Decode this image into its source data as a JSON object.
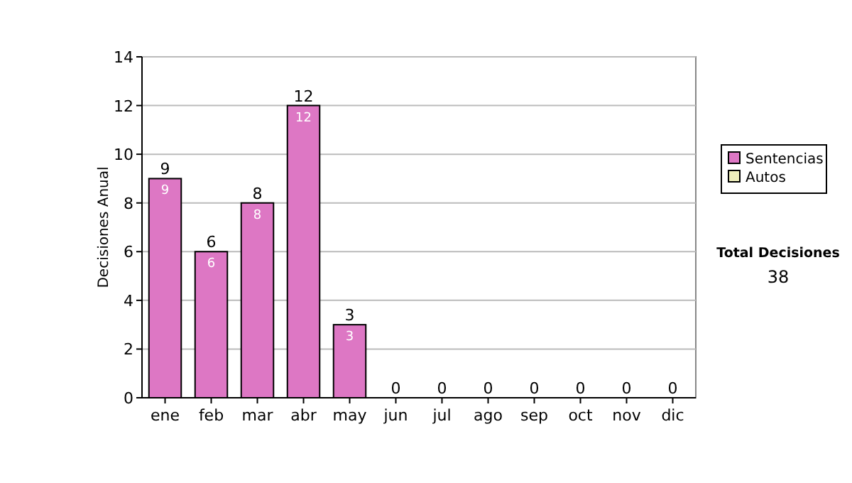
{
  "chart_data": {
    "type": "bar",
    "stacked": true,
    "ylabel": "Decisiones Anual",
    "categories": [
      "ene",
      "feb",
      "mar",
      "abr",
      "may",
      "jun",
      "jul",
      "ago",
      "sep",
      "oct",
      "nov",
      "dic"
    ],
    "series": [
      {
        "name": "Sentencias",
        "color": "#dd77c4",
        "values": [
          9,
          6,
          8,
          12,
          3,
          0,
          0,
          0,
          0,
          0,
          0,
          0
        ],
        "value_labels": [
          "9",
          "6",
          "8",
          "12",
          "3",
          null,
          null,
          null,
          null,
          null,
          null,
          null
        ]
      },
      {
        "name": "Autos",
        "color": "#eeeebb",
        "values": [
          0,
          0,
          0,
          0,
          0,
          0,
          0,
          0,
          0,
          0,
          0,
          0
        ]
      }
    ],
    "totals": [
      "9",
      "6",
      "8",
      "12",
      "3",
      "0",
      "0",
      "0",
      "0",
      "0",
      "0",
      "0"
    ],
    "ylim": [
      0,
      14
    ],
    "yticks": [
      0,
      2,
      4,
      6,
      8,
      10,
      12,
      14
    ],
    "grid": "y",
    "legend": "right",
    "annotations": [
      "Total Decisiones",
      "38"
    ]
  }
}
